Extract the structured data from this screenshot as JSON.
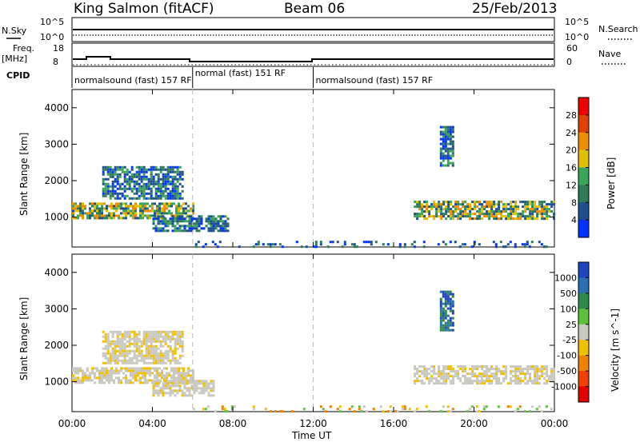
{
  "header": {
    "station": "King Salmon (fitACF)",
    "beam": "Beam 06",
    "date": "25/Feb/2013"
  },
  "strips": {
    "nsky_label": "N.Sky",
    "nsearch_label": "N.Search",
    "freq_label": "Freq.",
    "freq_unit": "[MHz]",
    "nave_label": "Nave",
    "cpid_label": "CPID",
    "noise_ticks": [
      "10^5",
      "10^0"
    ],
    "noise_ticks_right": [
      "10^5",
      "10^0"
    ],
    "freq_ticks": [
      "18",
      "8"
    ],
    "nave_ticks": [
      "60",
      "0"
    ]
  },
  "cpid_segments": [
    {
      "start_hour": 0,
      "end_hour": 6,
      "label": "normalsound (fast) 157 RF"
    },
    {
      "start_hour": 6,
      "end_hour": 12,
      "label": "normal (fast) 151 RF"
    },
    {
      "start_hour": 12,
      "end_hour": 24,
      "label": "normalsound (fast) 157 RF"
    }
  ],
  "colors": {
    "power_scale": [
      "#0033ff",
      "#1f4f8f",
      "#2e7b57",
      "#3aa55a",
      "#e0c000",
      "#f08c00",
      "#e04000",
      "#ee0000"
    ],
    "velocity_scale": [
      "#1f46c0",
      "#2a6fb0",
      "#2e8a4a",
      "#5cc23a",
      "#c8c8c0",
      "#f0c000",
      "#f08000",
      "#f04000",
      "#e00000"
    ],
    "dashed_line": "#bbbbbb"
  },
  "chart_data": [
    {
      "type": "heatmap",
      "name_key": "power",
      "ylabel": "Slant Range [km]",
      "xlabel": "Time UT",
      "x_ticks": [
        "00:00",
        "04:00",
        "08:00",
        "12:00",
        "16:00",
        "20:00",
        "00:00"
      ],
      "y_ticks": [
        "1000",
        "2000",
        "3000",
        "4000"
      ],
      "xlim": [
        0,
        24
      ],
      "ylim": [
        180,
        4500
      ],
      "colorbar_label": "Power [dB]",
      "colorbar_ticks": [
        "4",
        "8",
        "12",
        "16",
        "20",
        "24",
        "28"
      ],
      "dashed_hours": [
        6,
        12
      ],
      "echo_regions": [
        {
          "t_start": 0.0,
          "t_end": 6.0,
          "range_start": 950,
          "range_end": 1400,
          "level": "high"
        },
        {
          "t_start": 1.5,
          "t_end": 5.5,
          "range_start": 1500,
          "range_end": 2400,
          "level": "medium"
        },
        {
          "t_start": 4.0,
          "t_end": 7.8,
          "range_start": 650,
          "range_end": 1050,
          "level": "medium"
        },
        {
          "t_start": 17.0,
          "t_end": 24.0,
          "range_start": 950,
          "range_end": 1450,
          "level": "high"
        },
        {
          "t_start": 18.3,
          "t_end": 18.9,
          "range_start": 2400,
          "range_end": 3500,
          "level": "medium"
        },
        {
          "t_start": 6.0,
          "t_end": 24.0,
          "range_start": 180,
          "range_end": 350,
          "level": "low"
        }
      ]
    },
    {
      "type": "heatmap",
      "name_key": "velocity",
      "ylabel": "Slant Range [km]",
      "xlabel": "Time UT",
      "x_ticks": [
        "00:00",
        "04:00",
        "08:00",
        "12:00",
        "16:00",
        "20:00",
        "00:00"
      ],
      "y_ticks": [
        "1000",
        "2000",
        "3000",
        "4000"
      ],
      "xlim": [
        0,
        24
      ],
      "ylim": [
        180,
        4500
      ],
      "colorbar_label": "Velocity [m s^-1]",
      "colorbar_ticks": [
        "1000",
        "500",
        "100",
        "25",
        "-25",
        "-100",
        "-500",
        "-1000"
      ],
      "dashed_hours": [
        6,
        12
      ],
      "echo_regions": [
        {
          "t_start": 0.0,
          "t_end": 6.0,
          "range_start": 950,
          "range_end": 1400,
          "level": "ground"
        },
        {
          "t_start": 1.5,
          "t_end": 5.5,
          "range_start": 1500,
          "range_end": 2400,
          "level": "ground"
        },
        {
          "t_start": 4.0,
          "t_end": 7.0,
          "range_start": 650,
          "range_end": 1050,
          "level": "ground"
        },
        {
          "t_start": 17.0,
          "t_end": 24.0,
          "range_start": 950,
          "range_end": 1450,
          "level": "ground"
        },
        {
          "t_start": 18.3,
          "t_end": 18.9,
          "range_start": 2400,
          "range_end": 3500,
          "level": "negative"
        },
        {
          "t_start": 6.0,
          "t_end": 24.0,
          "range_start": 180,
          "range_end": 350,
          "level": "mixed"
        }
      ]
    }
  ]
}
